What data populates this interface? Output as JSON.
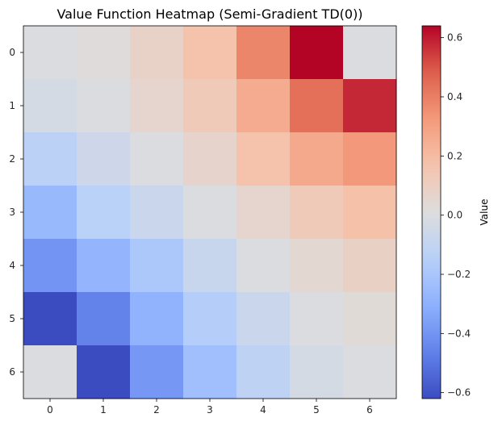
{
  "chart_data": {
    "type": "heatmap",
    "title": "Value Function Heatmap (Semi-Gradient TD(0))",
    "x_categories": [
      "0",
      "1",
      "2",
      "3",
      "4",
      "5",
      "6"
    ],
    "y_categories": [
      "0",
      "1",
      "2",
      "3",
      "4",
      "5",
      "6"
    ],
    "values": [
      [
        0.0,
        0.02,
        0.08,
        0.17,
        0.38,
        0.64,
        0.0
      ],
      [
        -0.03,
        0.0,
        0.06,
        0.13,
        0.26,
        0.44,
        0.58
      ],
      [
        -0.13,
        -0.06,
        0.0,
        0.07,
        0.17,
        0.27,
        0.33
      ],
      [
        -0.26,
        -0.14,
        -0.07,
        0.0,
        0.06,
        0.13,
        0.18
      ],
      [
        -0.4,
        -0.28,
        -0.19,
        -0.08,
        0.0,
        0.05,
        0.09
      ],
      [
        -0.62,
        -0.46,
        -0.29,
        -0.16,
        -0.07,
        0.0,
        0.03
      ],
      [
        0.0,
        -0.62,
        -0.39,
        -0.23,
        -0.12,
        -0.03,
        0.0
      ]
    ],
    "colormap": "coolwarm",
    "vmin": -0.62,
    "vmax": 0.64,
    "colorbar": {
      "label": "Value",
      "ticks": [
        -0.6,
        -0.4,
        -0.2,
        0.0,
        0.2,
        0.4,
        0.6
      ],
      "tick_labels": [
        "−0.6",
        "−0.4",
        "−0.2",
        "0.0",
        "0.2",
        "0.4",
        "0.6"
      ]
    }
  }
}
